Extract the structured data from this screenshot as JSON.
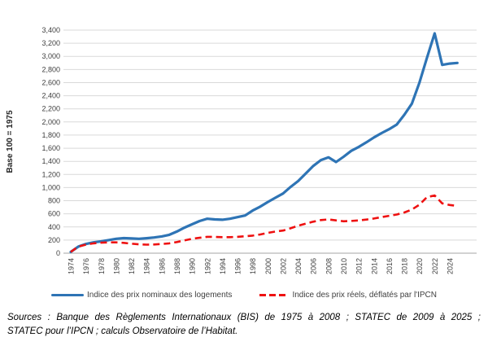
{
  "chart_data": {
    "type": "line",
    "title": "",
    "xlabel": "",
    "ylabel": "Base 100 = 1975",
    "ylim": [
      0,
      3400
    ],
    "ytick_step": 200,
    "grid": true,
    "legend_position": "bottom",
    "xtick_years": [
      1974,
      1976,
      1978,
      1980,
      1982,
      1984,
      1986,
      1988,
      1990,
      1992,
      1994,
      1996,
      1998,
      2000,
      2002,
      2004,
      2006,
      2008,
      2010,
      2012,
      2014,
      2016,
      2018,
      2020,
      2022,
      2024
    ],
    "x": [
      1974,
      1975,
      1976,
      1977,
      1978,
      1979,
      1980,
      1981,
      1982,
      1983,
      1984,
      1985,
      1986,
      1987,
      1988,
      1989,
      1990,
      1991,
      1992,
      1993,
      1994,
      1995,
      1996,
      1997,
      1998,
      1999,
      2000,
      2001,
      2002,
      2003,
      2004,
      2005,
      2006,
      2007,
      2008,
      2009,
      2010,
      2011,
      2012,
      2013,
      2014,
      2015,
      2016,
      2017,
      2018,
      2019,
      2020,
      2021,
      2022,
      2023,
      2024,
      2025
    ],
    "series": [
      {
        "name": "Indice des prix nominaux des logements",
        "color": "#2e74b5",
        "style": "solid",
        "values": [
          20,
          100,
          140,
          165,
          180,
          200,
          220,
          230,
          225,
          220,
          228,
          240,
          255,
          280,
          330,
          390,
          440,
          490,
          525,
          515,
          510,
          525,
          550,
          575,
          650,
          710,
          780,
          845,
          910,
          1010,
          1100,
          1215,
          1330,
          1420,
          1460,
          1390,
          1470,
          1560,
          1620,
          1690,
          1765,
          1830,
          1890,
          1960,
          2110,
          2280,
          2600,
          2980,
          3350,
          2870,
          2890,
          2900
        ]
      },
      {
        "name": "Indice des prix réels, déflatés par l'IPCN",
        "color": "#ee1111",
        "style": "dashed",
        "values": [
          20,
          100,
          130,
          150,
          160,
          165,
          165,
          158,
          145,
          135,
          130,
          133,
          140,
          150,
          170,
          195,
          220,
          235,
          250,
          248,
          245,
          245,
          250,
          258,
          268,
          285,
          310,
          330,
          345,
          380,
          420,
          450,
          480,
          505,
          515,
          500,
          487,
          492,
          500,
          512,
          528,
          550,
          570,
          590,
          620,
          665,
          740,
          855,
          880,
          760,
          735,
          720
        ]
      }
    ]
  },
  "footer": {
    "sources_line1": "Sources : Banque des Règlements Internationaux (BIS) de 1975 à 2008 ; STATEC de 2009 à 2025 ;",
    "sources_line2": "STATEC pour l’IPCN ; calculs Observatoire de l’Habitat."
  },
  "colors": {
    "nominal_line": "#2e74b5",
    "real_line": "#ee1111",
    "gridline": "#d9d9d9",
    "axis_line": "#a6a6a6"
  }
}
